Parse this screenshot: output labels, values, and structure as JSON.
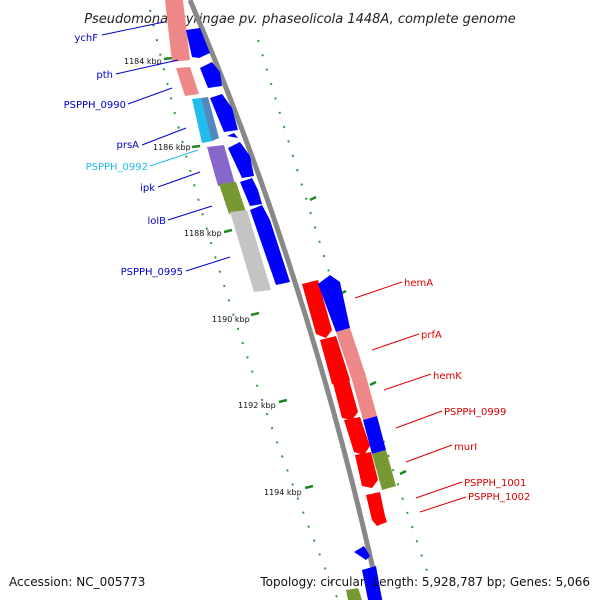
{
  "title": "Pseudomonas syringae pv. phaseolicola 1448A, complete genome",
  "footer": {
    "accession": "Accession: NC_005773",
    "topology": "Topology: circular; Length: 5,928,787 bp; Genes: 5,066"
  },
  "kbp_labels": [
    "1184 kbp",
    "1186 kbp",
    "1188 kbp",
    "1190 kbp",
    "1192 kbp",
    "1194 kbp"
  ],
  "genes_left": [
    "ychF",
    "pth",
    "PSPPH_0990",
    "prsA",
    "PSPPH_0992",
    "ipk",
    "lolB",
    "PSPPH_0995"
  ],
  "genes_right": [
    "hemA",
    "prfA",
    "hemK",
    "PSPPH_0999",
    "murI",
    "PSPPH_1001",
    "PSPPH_1002"
  ],
  "colors": {
    "gene_cds": "#ff0000",
    "gene_outer_blue": "#0000ff",
    "label_blue": "#0000cc",
    "label_cyan": "#22bbee",
    "label_red": "#dd0000",
    "backbone": "#888888",
    "tick_green": "#228822",
    "pink": "#ee8888",
    "cyan": "#22bbee",
    "steelblue": "#5588bb",
    "purple": "#8866cc",
    "olive": "#779933",
    "gray": "#c4c4c4"
  }
}
